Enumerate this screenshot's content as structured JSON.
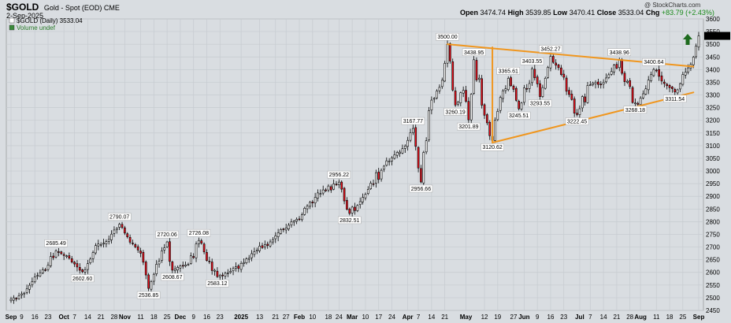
{
  "header": {
    "symbol": "$GOLD",
    "description": "Gold - Spot (EOD)  CME",
    "date": "2-Sep-2025",
    "watermark": "@ StockCharts.com",
    "open_label": "Open",
    "open": "3474.74",
    "high_label": "High",
    "high": "3539.85",
    "low_label": "Low",
    "low": "3470.41",
    "close_label": "Close",
    "close": "3533.04",
    "chg_label": "Chg",
    "chg": "+83.79 (+2.43%)"
  },
  "legend": {
    "price": "$GOLD (Daily) 3533.04",
    "volume": "Volume undef"
  },
  "colors": {
    "background": "#d9dde1",
    "grid": "#c6cbd0",
    "up": "#ffffff",
    "down": "#e8101c",
    "wick": "#000000",
    "trend": "#f0961e",
    "arrow": "#1e6b1e",
    "last_price_box": "#000000"
  },
  "chart_data": {
    "type": "candlestick",
    "yaxis": {
      "min": 2450,
      "max": 3600,
      "ticks": [
        2450,
        2500,
        2550,
        2600,
        2650,
        2700,
        2750,
        2800,
        2850,
        2900,
        2950,
        3000,
        3050,
        3100,
        3150,
        3200,
        3250,
        3300,
        3350,
        3400,
        3450,
        3500,
        3550,
        3600
      ],
      "position": "right"
    },
    "last_price": "3533.04",
    "xticks": [
      {
        "label": "Sep",
        "date": "2024-09-03",
        "bold": true
      },
      {
        "label": "9",
        "date": "2024-09-09"
      },
      {
        "label": "16",
        "date": "2024-09-16"
      },
      {
        "label": "23",
        "date": "2024-09-23"
      },
      {
        "label": "Oct",
        "date": "2024-10-01",
        "bold": true
      },
      {
        "label": "7",
        "date": "2024-10-07"
      },
      {
        "label": "14",
        "date": "2024-10-14"
      },
      {
        "label": "21",
        "date": "2024-10-21"
      },
      {
        "label": "28",
        "date": "2024-10-28"
      },
      {
        "label": "Nov",
        "date": "2024-11-01",
        "bold": true
      },
      {
        "label": "11",
        "date": "2024-11-11"
      },
      {
        "label": "18",
        "date": "2024-11-18"
      },
      {
        "label": "25",
        "date": "2024-11-25"
      },
      {
        "label": "Dec",
        "date": "2024-12-02",
        "bold": true
      },
      {
        "label": "9",
        "date": "2024-12-09"
      },
      {
        "label": "16",
        "date": "2024-12-16"
      },
      {
        "label": "23",
        "date": "2024-12-23"
      },
      {
        "label": "2025",
        "date": "2025-01-02",
        "bold": true
      },
      {
        "label": "13",
        "date": "2025-01-13"
      },
      {
        "label": "21",
        "date": "2025-01-21"
      },
      {
        "label": "27",
        "date": "2025-01-27"
      },
      {
        "label": "Feb",
        "date": "2025-02-03",
        "bold": true
      },
      {
        "label": "10",
        "date": "2025-02-10"
      },
      {
        "label": "18",
        "date": "2025-02-18"
      },
      {
        "label": "24",
        "date": "2025-02-24"
      },
      {
        "label": "Mar",
        "date": "2025-03-03",
        "bold": true
      },
      {
        "label": "10",
        "date": "2025-03-10"
      },
      {
        "label": "17",
        "date": "2025-03-17"
      },
      {
        "label": "24",
        "date": "2025-03-24"
      },
      {
        "label": "Apr",
        "date": "2025-04-01",
        "bold": true
      },
      {
        "label": "7",
        "date": "2025-04-07"
      },
      {
        "label": "14",
        "date": "2025-04-14"
      },
      {
        "label": "21",
        "date": "2025-04-21"
      },
      {
        "label": "May",
        "date": "2025-05-01",
        "bold": true
      },
      {
        "label": "12",
        "date": "2025-05-12"
      },
      {
        "label": "19",
        "date": "2025-05-19"
      },
      {
        "label": "27",
        "date": "2025-05-27"
      },
      {
        "label": "Jun",
        "date": "2025-06-02",
        "bold": true
      },
      {
        "label": "9",
        "date": "2025-06-09"
      },
      {
        "label": "16",
        "date": "2025-06-16"
      },
      {
        "label": "23",
        "date": "2025-06-23"
      },
      {
        "label": "Jul",
        "date": "2025-07-01",
        "bold": true
      },
      {
        "label": "7",
        "date": "2025-07-07"
      },
      {
        "label": "14",
        "date": "2025-07-14"
      },
      {
        "label": "21",
        "date": "2025-07-21"
      },
      {
        "label": "28",
        "date": "2025-07-28"
      },
      {
        "label": "Aug",
        "date": "2025-08-01",
        "bold": true
      },
      {
        "label": "11",
        "date": "2025-08-11"
      },
      {
        "label": "18",
        "date": "2025-08-18"
      },
      {
        "label": "25",
        "date": "2025-08-25"
      },
      {
        "label": "Sep",
        "date": "2025-09-02",
        "bold": true
      }
    ],
    "anchors": [
      {
        "date": "2024-09-03",
        "close": 2494
      },
      {
        "date": "2024-09-10",
        "close": 2518
      },
      {
        "date": "2024-09-16",
        "close": 2582
      },
      {
        "date": "2024-09-23",
        "close": 2628
      },
      {
        "date": "2024-09-26",
        "close": 2685.49
      },
      {
        "date": "2024-10-03",
        "close": 2656
      },
      {
        "date": "2024-10-10",
        "close": 2602.6
      },
      {
        "date": "2024-10-18",
        "close": 2712
      },
      {
        "date": "2024-10-24",
        "close": 2730
      },
      {
        "date": "2024-10-30",
        "close": 2790.07
      },
      {
        "date": "2024-11-04",
        "close": 2740
      },
      {
        "date": "2024-11-08",
        "close": 2688
      },
      {
        "date": "2024-11-14",
        "close": 2536.85
      },
      {
        "date": "2024-11-19",
        "close": 2632
      },
      {
        "date": "2024-11-25",
        "close": 2720.06
      },
      {
        "date": "2024-11-27",
        "close": 2608.67
      },
      {
        "date": "2024-12-05",
        "close": 2632
      },
      {
        "date": "2024-12-11",
        "close": 2726.08
      },
      {
        "date": "2024-12-17",
        "close": 2642
      },
      {
        "date": "2024-12-20",
        "close": 2583.12
      },
      {
        "date": "2024-12-31",
        "close": 2622
      },
      {
        "date": "2025-01-10",
        "close": 2688
      },
      {
        "date": "2025-01-22",
        "close": 2756
      },
      {
        "date": "2025-02-03",
        "close": 2810
      },
      {
        "date": "2025-02-11",
        "close": 2896
      },
      {
        "date": "2025-02-24",
        "close": 2956.22
      },
      {
        "date": "2025-02-28",
        "close": 2832.51
      },
      {
        "date": "2025-03-10",
        "close": 2908
      },
      {
        "date": "2025-03-20",
        "close": 3040
      },
      {
        "date": "2025-03-28",
        "close": 3088
      },
      {
        "date": "2025-04-03",
        "close": 3167.77
      },
      {
        "date": "2025-04-08",
        "close": 2956.66
      },
      {
        "date": "2025-04-11",
        "close": 3238
      },
      {
        "date": "2025-04-17",
        "close": 3330
      },
      {
        "date": "2025-04-22",
        "close": 3500
      },
      {
        "date": "2025-04-25",
        "close": 3260.19
      },
      {
        "date": "2025-04-30",
        "close": 3318
      },
      {
        "date": "2025-05-02",
        "close": 3201.89
      },
      {
        "date": "2025-05-06",
        "close": 3438.95
      },
      {
        "date": "2025-05-12",
        "close": 3220
      },
      {
        "date": "2025-05-15",
        "close": 3120.62
      },
      {
        "date": "2025-05-20",
        "close": 3290
      },
      {
        "date": "2025-05-23",
        "close": 3365.61
      },
      {
        "date": "2025-05-29",
        "close": 3245.51
      },
      {
        "date": "2025-06-05",
        "close": 3403.55
      },
      {
        "date": "2025-06-10",
        "close": 3293.55
      },
      {
        "date": "2025-06-16",
        "close": 3452.27
      },
      {
        "date": "2025-06-23",
        "close": 3370
      },
      {
        "date": "2025-06-30",
        "close": 3222.45
      },
      {
        "date": "2025-07-07",
        "close": 3340
      },
      {
        "date": "2025-07-14",
        "close": 3350
      },
      {
        "date": "2025-07-22",
        "close": 3438.96
      },
      {
        "date": "2025-07-30",
        "close": 3268.18
      },
      {
        "date": "2025-08-08",
        "close": 3400.64
      },
      {
        "date": "2025-08-14",
        "close": 3345
      },
      {
        "date": "2025-08-20",
        "close": 3311.54
      },
      {
        "date": "2025-08-26",
        "close": 3390
      },
      {
        "date": "2025-08-29",
        "close": 3449.25
      },
      {
        "date": "2025-09-02",
        "close": 3533.04
      }
    ],
    "annotations": [
      {
        "text": "2685.49",
        "date": "2024-09-26",
        "value": 2685.49,
        "pos": "above"
      },
      {
        "text": "2602.60",
        "date": "2024-10-10",
        "value": 2602.6,
        "pos": "below"
      },
      {
        "text": "2790.07",
        "date": "2024-10-30",
        "value": 2790.07,
        "pos": "above"
      },
      {
        "text": "2536.85",
        "date": "2024-11-14",
        "value": 2536.85,
        "pos": "below"
      },
      {
        "text": "2720.06",
        "date": "2024-11-25",
        "value": 2720.06,
        "pos": "above"
      },
      {
        "text": "2608.67",
        "date": "2024-11-27",
        "value": 2608.67,
        "pos": "below"
      },
      {
        "text": "2726.08",
        "date": "2024-12-11",
        "value": 2726.08,
        "pos": "above"
      },
      {
        "text": "2583.12",
        "date": "2024-12-20",
        "value": 2583.12,
        "pos": "below"
      },
      {
        "text": "2956.22",
        "date": "2025-02-24",
        "value": 2956.22,
        "pos": "above"
      },
      {
        "text": "2832.51",
        "date": "2025-02-28",
        "value": 2832.51,
        "pos": "below"
      },
      {
        "text": "3167.77",
        "date": "2025-04-03",
        "value": 3167.77,
        "pos": "above"
      },
      {
        "text": "2956.66",
        "date": "2025-04-08",
        "value": 2956.66,
        "pos": "below"
      },
      {
        "text": "3500.00",
        "date": "2025-04-22",
        "value": 3500,
        "pos": "above"
      },
      {
        "text": "3260.19",
        "date": "2025-04-25",
        "value": 3260.19,
        "pos": "below"
      },
      {
        "text": "3201.89",
        "date": "2025-05-02",
        "value": 3201.89,
        "pos": "below"
      },
      {
        "text": "3438.95",
        "date": "2025-05-06",
        "value": 3438.95,
        "pos": "above"
      },
      {
        "text": "3120.62",
        "date": "2025-05-15",
        "value": 3120.62,
        "pos": "below"
      },
      {
        "text": "3365.61",
        "date": "2025-05-23",
        "value": 3365.61,
        "pos": "above"
      },
      {
        "text": "3245.51",
        "date": "2025-05-29",
        "value": 3245.51,
        "pos": "below"
      },
      {
        "text": "3403.55",
        "date": "2025-06-05",
        "value": 3403.55,
        "pos": "above"
      },
      {
        "text": "3293.55",
        "date": "2025-06-10",
        "value": 3293.55,
        "pos": "below"
      },
      {
        "text": "3452.27",
        "date": "2025-06-16",
        "value": 3452.27,
        "pos": "above"
      },
      {
        "text": "3222.45",
        "date": "2025-06-30",
        "value": 3222.45,
        "pos": "below"
      },
      {
        "text": "3438.96",
        "date": "2025-07-22",
        "value": 3438.96,
        "pos": "above"
      },
      {
        "text": "3268.18",
        "date": "2025-07-30",
        "value": 3268.18,
        "pos": "below"
      },
      {
        "text": "3400.64",
        "date": "2025-08-08",
        "value": 3400.64,
        "pos": "above"
      },
      {
        "text": "3311.54",
        "date": "2025-08-20",
        "value": 3311.54,
        "pos": "below"
      }
    ],
    "trendlines": [
      {
        "name": "upper",
        "from": {
          "date": "2025-04-22",
          "value": 3500
        },
        "to": {
          "date": "2025-08-29",
          "value": 3412
        }
      },
      {
        "name": "lower",
        "from": {
          "date": "2025-05-15",
          "value": 3112
        },
        "to": {
          "date": "2025-08-29",
          "value": 3310
        }
      },
      {
        "name": "pole",
        "from": {
          "date": "2025-05-15",
          "value": 3488
        },
        "to": {
          "date": "2025-05-15",
          "value": 3112
        }
      }
    ],
    "grid": true
  }
}
